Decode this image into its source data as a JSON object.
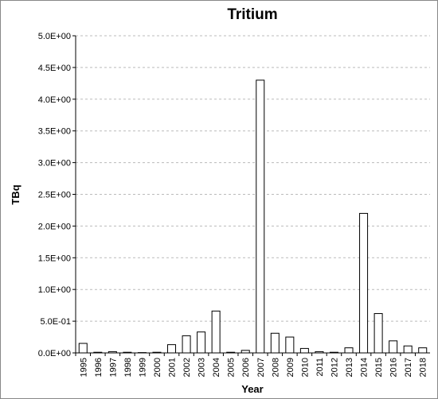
{
  "chart_data": {
    "type": "bar",
    "title": "Tritium",
    "x_label": "Year",
    "y_label": "TBq",
    "categories": [
      "1995",
      "1996",
      "1997",
      "1998",
      "1999",
      "2000",
      "2001",
      "2002",
      "2003",
      "2004",
      "2005",
      "2006",
      "2007",
      "2008",
      "2009",
      "2010",
      "2011",
      "2012",
      "2013",
      "2014",
      "2015",
      "2016",
      "2017",
      "2018"
    ],
    "values": [
      0.15,
      0.01,
      0.02,
      0.01,
      0.005,
      0.01,
      0.13,
      0.27,
      0.33,
      0.66,
      0.01,
      0.04,
      4.3,
      0.31,
      0.25,
      0.07,
      0.02,
      0.01,
      0.08,
      2.2,
      0.62,
      0.19,
      0.11,
      0.08
    ],
    "color": "#ffffff",
    "edge_color": "#000000",
    "ylim": [
      0,
      5
    ],
    "yticks": [
      {
        "value": 0,
        "label": "0.0E+00"
      },
      {
        "value": 0.5,
        "label": "5.0E-01"
      },
      {
        "value": 1,
        "label": "1.0E+00"
      },
      {
        "value": 1.5,
        "label": "1.5E+00"
      },
      {
        "value": 2,
        "label": "2.0E+00"
      },
      {
        "value": 2.5,
        "label": "2.5E+00"
      },
      {
        "value": 3,
        "label": "3.0E+00"
      },
      {
        "value": 3.5,
        "label": "3.5E+00"
      },
      {
        "value": 4,
        "label": "4.0E+00"
      },
      {
        "value": 4.5,
        "label": "4.5E+00"
      },
      {
        "value": 5,
        "label": "5.0E+00"
      }
    ],
    "grid": true
  }
}
